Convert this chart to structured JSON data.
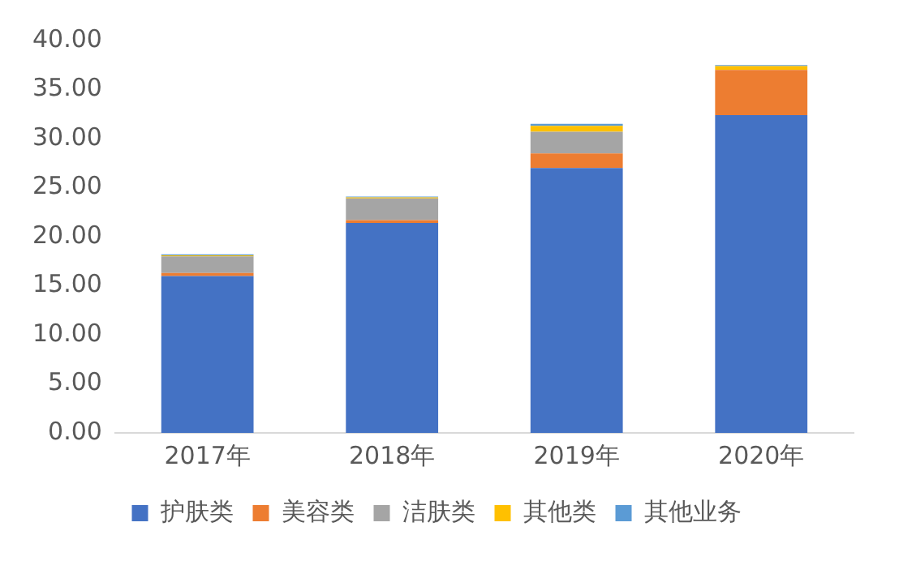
{
  "chart_data": {
    "type": "bar",
    "stacked": true,
    "categories": [
      "2017年",
      "2018年",
      "2019年",
      "2020年"
    ],
    "series": [
      {
        "name": "护肤类",
        "color": "#4472c4",
        "values": [
          16.0,
          21.4,
          27.0,
          32.4
        ]
      },
      {
        "name": "美容类",
        "color": "#ed7d31",
        "values": [
          0.3,
          0.3,
          1.5,
          4.6
        ]
      },
      {
        "name": "洁肤类",
        "color": "#a5a5a5",
        "values": [
          1.7,
          2.2,
          2.2,
          null
        ]
      },
      {
        "name": "其他类",
        "color": "#ffc000",
        "values": [
          0.1,
          0.1,
          0.6,
          0.4
        ]
      },
      {
        "name": "其他业务",
        "color": "#5b9bd5",
        "values": [
          0.1,
          0.1,
          0.2,
          0.1
        ]
      }
    ],
    "ylim": [
      0,
      40
    ],
    "yticks": [
      {
        "value": 0,
        "label": "0.00"
      },
      {
        "value": 5,
        "label": "5.00"
      },
      {
        "value": 10,
        "label": "10.00"
      },
      {
        "value": 15,
        "label": "15.00"
      },
      {
        "value": 20,
        "label": "20.00"
      },
      {
        "value": 25,
        "label": "25.00"
      },
      {
        "value": 30,
        "label": "30.00"
      },
      {
        "value": 35,
        "label": "35.00"
      },
      {
        "value": 40,
        "label": "40.00"
      }
    ],
    "grid": false,
    "legend": "bottom"
  }
}
